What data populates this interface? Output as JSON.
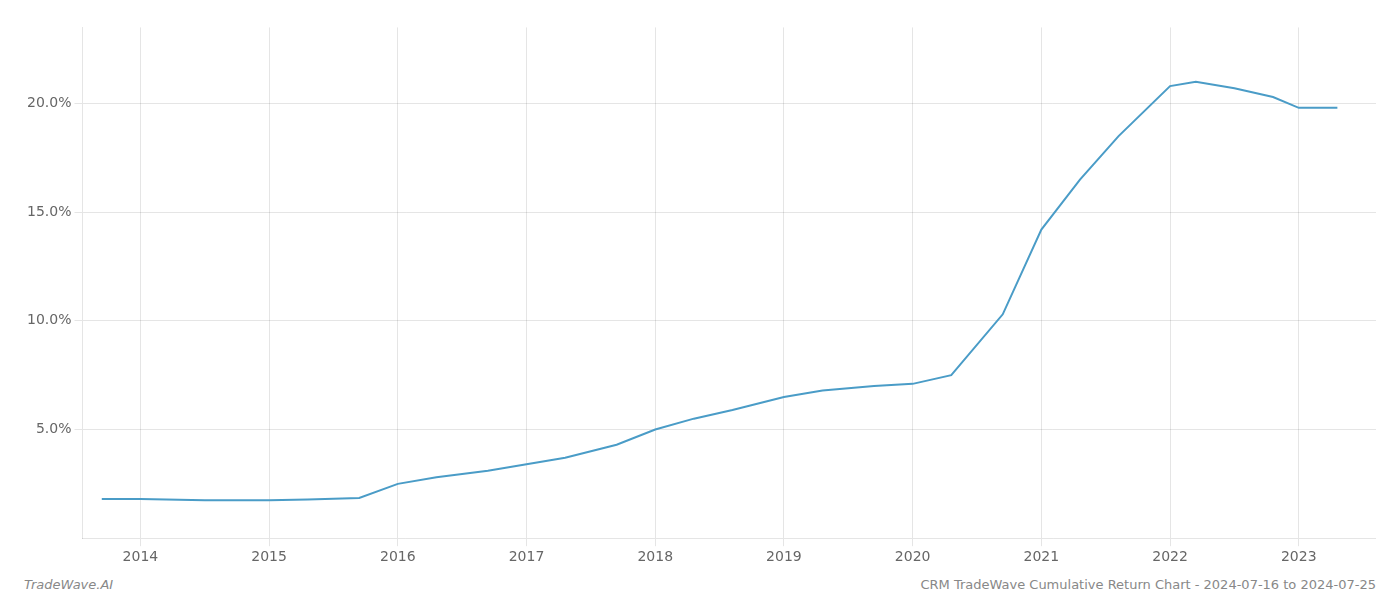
{
  "chart_data": {
    "type": "line",
    "annotations": [
      "TradeWave.AI",
      "CRM TradeWave Cumulative Return Chart - 2024-07-16 to 2024-07-25"
    ],
    "x": [
      2013.7,
      2014.0,
      2014.5,
      2015.0,
      2015.3,
      2015.7,
      2016.0,
      2016.3,
      2016.7,
      2017.0,
      2017.3,
      2017.7,
      2018.0,
      2018.3,
      2018.6,
      2019.0,
      2019.3,
      2019.7,
      2020.0,
      2020.3,
      2020.7,
      2021.0,
      2021.3,
      2021.6,
      2022.0,
      2022.2,
      2022.5,
      2022.8,
      2023.0,
      2023.3
    ],
    "values": [
      1.8,
      1.8,
      1.75,
      1.75,
      1.78,
      1.85,
      2.5,
      2.8,
      3.1,
      3.4,
      3.7,
      4.3,
      5.0,
      5.5,
      5.9,
      6.5,
      6.8,
      7.0,
      7.1,
      7.5,
      10.3,
      14.2,
      16.5,
      18.5,
      20.8,
      21.0,
      20.7,
      20.3,
      19.8,
      19.8
    ],
    "color": "#4a9cc7",
    "xlim": [
      2013.55,
      2023.6
    ],
    "xticks": [
      2014,
      2015,
      2016,
      2017,
      2018,
      2019,
      2020,
      2021,
      2022,
      2023
    ],
    "ylim": [
      0.0,
      23.5
    ],
    "yticks": [
      {
        "value": 5.0,
        "label": "5.0%"
      },
      {
        "value": 10.0,
        "label": "10.0%"
      },
      {
        "value": 15.0,
        "label": "15.0%"
      },
      {
        "value": 20.0,
        "label": "20.0%"
      }
    ],
    "grid": true
  }
}
